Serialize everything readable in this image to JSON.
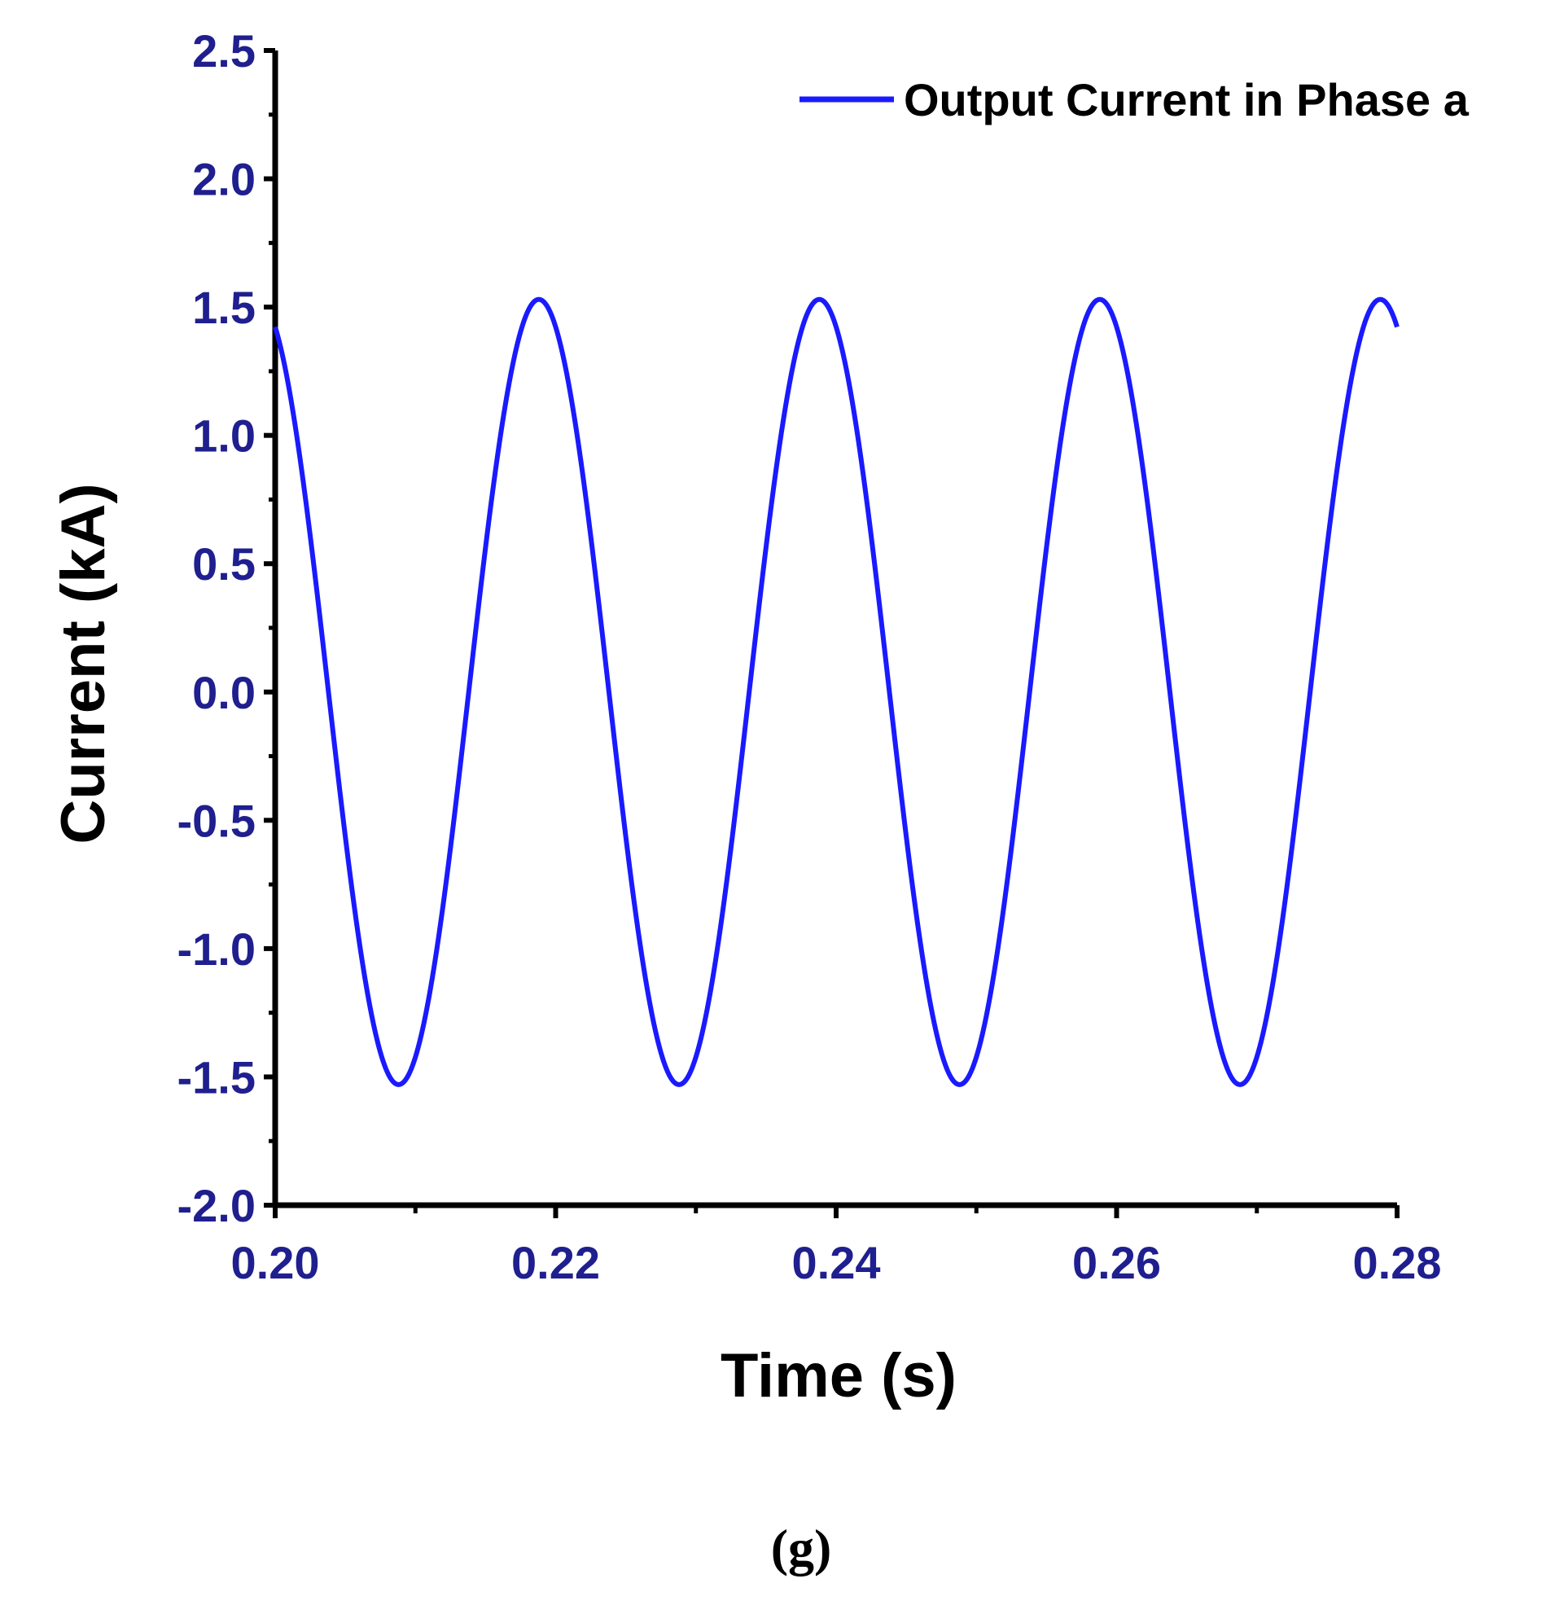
{
  "chart_data": {
    "type": "line",
    "xlabel": "Time (s)",
    "ylabel": "Current (kA)",
    "xlim": [
      0.2,
      0.28
    ],
    "ylim": [
      -2.0,
      2.5
    ],
    "x_ticks": [
      "0.20",
      "0.22",
      "0.24",
      "0.26",
      "0.28"
    ],
    "x_tick_values": [
      0.2,
      0.22,
      0.24,
      0.26,
      0.28
    ],
    "y_ticks": [
      "2.5",
      "2.0",
      "1.5",
      "1.0",
      "0.5",
      "0.0",
      "-0.5",
      "-1.0",
      "-1.5",
      "-2.0"
    ],
    "y_tick_values": [
      2.5,
      2.0,
      1.5,
      1.0,
      0.5,
      0.0,
      -0.5,
      -1.0,
      -1.5,
      -2.0
    ],
    "legend_position": "top-right",
    "grid": false,
    "series": [
      {
        "name": "Output Current in Phase a",
        "color": "#1a1aff",
        "waveform": "sine",
        "amplitude_kA": 1.53,
        "frequency_hz": 50,
        "first_peak_time_s": 0.2188,
        "t_start_s": 0.2,
        "t_end_s": 0.28,
        "peaks": [
          {
            "x": 0.2188,
            "y": 1.53
          },
          {
            "x": 0.2388,
            "y": 1.53
          },
          {
            "x": 0.2588,
            "y": 1.53
          },
          {
            "x": 0.2788,
            "y": 1.53
          }
        ],
        "troughs": [
          {
            "x": 0.2088,
            "y": -1.53
          },
          {
            "x": 0.2288,
            "y": -1.53
          },
          {
            "x": 0.2488,
            "y": -1.53
          },
          {
            "x": 0.2688,
            "y": -1.53
          }
        ],
        "start_value": {
          "x": 0.2,
          "y": 1.38
        },
        "end_value": {
          "x": 0.28,
          "y": 1.38
        }
      }
    ],
    "tick_color": "#1f1f8f",
    "axis_color": "#000000"
  },
  "caption": "(g)"
}
